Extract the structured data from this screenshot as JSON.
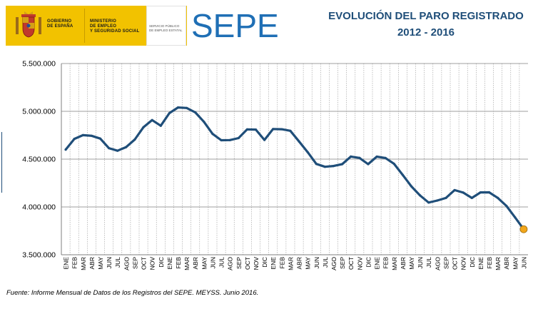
{
  "header": {
    "gov_lines": "GOBIERNO\nDE ESPAÑA",
    "ministry_lines": "MINISTERIO\nDE EMPLEO\nY SEGURIDAD SOCIAL",
    "service_lines": "SERVICIO PÚBLICO\nDE EMPLEO ESTATAL",
    "logo_text": "SEPE",
    "title_line1": "EVOLUCIÓN DEL PARO REGISTRADO",
    "title_line2": "2012 - 2016",
    "colors": {
      "gov_yellow": "#f2c200",
      "logo_blue": "#1f6fb5",
      "title_blue": "#1f4e79"
    }
  },
  "footer": {
    "source": "Fuente: Informe Mensual de Datos de los Registros del SEPE. MEYSS. Junio 2016."
  },
  "chart_data": {
    "type": "line",
    "ylim": [
      3500000,
      5500000
    ],
    "yticks": [
      3500000,
      4000000,
      4500000,
      5000000,
      5500000
    ],
    "ytick_labels": [
      "3.500.000",
      "4.000.000",
      "4.500.000",
      "5.000.000",
      "5.500.000"
    ],
    "grid": true,
    "line_color": "#1f4e79",
    "marker_color": "#f2a71b",
    "categories": [
      "ENE",
      "FEB",
      "MAR",
      "ABR",
      "MAY",
      "JUN",
      "JUL",
      "AGO",
      "SEP",
      "OCT",
      "NOV",
      "DIC",
      "ENE",
      "FEB",
      "MAR",
      "ABR",
      "MAY",
      "JUN",
      "JUL",
      "AGO",
      "SEP",
      "OCT",
      "NOV",
      "DIC",
      "ENE",
      "FEB",
      "MAR",
      "ABR",
      "MAY",
      "JUN",
      "JUL",
      "AGO",
      "SEP",
      "OCT",
      "NOV",
      "DIC",
      "ENE",
      "FEB",
      "MAR",
      "ABR",
      "MAY",
      "JUN",
      "JUL",
      "AGO",
      "SEP",
      "OCT",
      "NOV",
      "DIC",
      "ENE",
      "FEB",
      "MAR",
      "ABR",
      "MAY",
      "JUN"
    ],
    "values": [
      4600000,
      4712000,
      4751000,
      4744000,
      4715000,
      4615000,
      4588000,
      4626000,
      4705000,
      4834000,
      4908000,
      4849000,
      4981000,
      5040000,
      5035000,
      4989000,
      4890000,
      4764000,
      4698000,
      4699000,
      4720000,
      4811000,
      4809000,
      4701000,
      4815000,
      4813000,
      4796000,
      4685000,
      4573000,
      4450000,
      4420000,
      4428000,
      4448000,
      4527000,
      4513000,
      4448000,
      4526000,
      4512000,
      4451000,
      4335000,
      4216000,
      4121000,
      4046000,
      4067000,
      4094000,
      4176000,
      4150000,
      4094000,
      4152000,
      4153000,
      4095000,
      4011000,
      3891000,
      3767000
    ]
  }
}
